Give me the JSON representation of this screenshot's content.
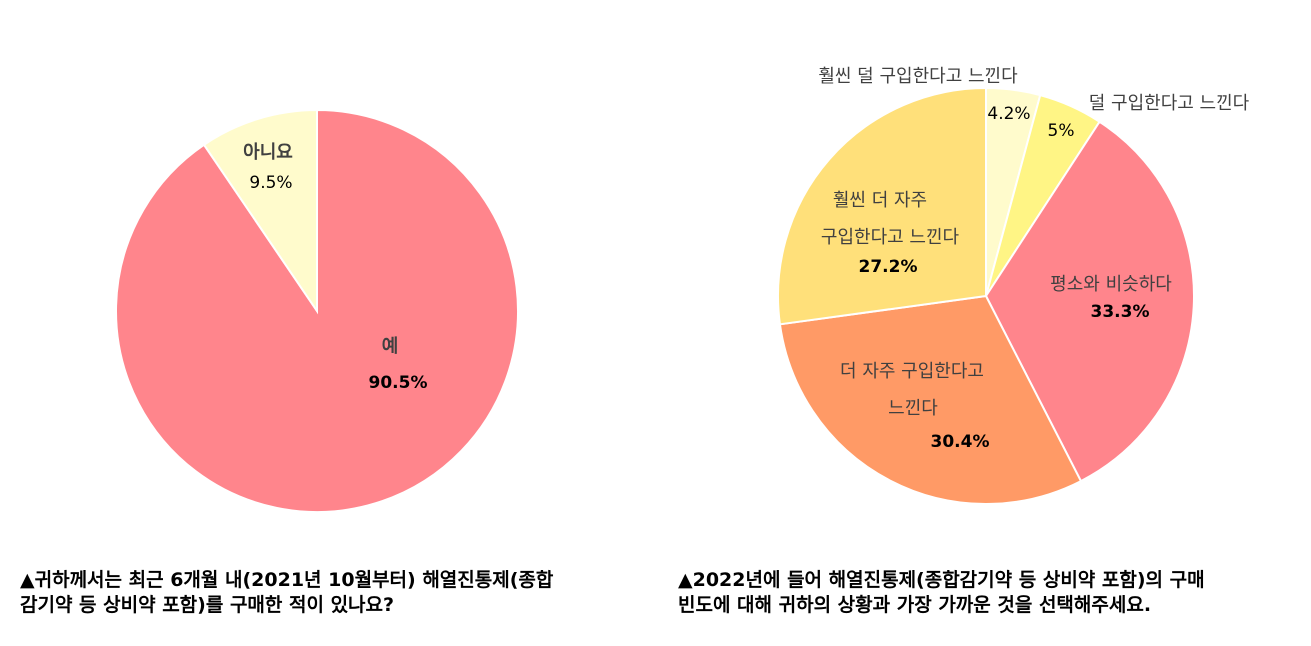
{
  "chart_data": [
    {
      "type": "pie",
      "title": "",
      "question": "▲귀하께서는 최근 6개월 내(2021년 10월부터) 해열진통제(종합\n감기약 등 상비약 포함)를 구매한 적이 있나요?",
      "slices": [
        {
          "label": "예",
          "value": 90.5,
          "value_label": "90.5%",
          "color": "#FF858C"
        },
        {
          "label": "아니요",
          "value": 9.5,
          "value_label": "9.5%",
          "color": "#FFFBCC"
        }
      ]
    },
    {
      "type": "pie",
      "title": "",
      "question": "▲2022년에 들어 해열진통제(종합감기약 등 상비약 포함)의 구매\n빈도에 대해 귀하의 상황과 가장 가까운 것을 선택해주세요.",
      "slices": [
        {
          "label": "훨씬 덜 구입한다고 느낀다",
          "value": 4.2,
          "value_label": "4.2%",
          "color": "#FFFBCC"
        },
        {
          "label": "덜 구입한다고 느낀다",
          "value": 5,
          "value_label": "5%",
          "color": "#FFF585"
        },
        {
          "label": "평소와 비슷하다",
          "value": 33.3,
          "value_label": "33.3%",
          "color": "#FF858C"
        },
        {
          "label": "더 자주 구입한다고 느낀다",
          "value": 30.4,
          "value_label": "30.4%",
          "color": "#FF9A66"
        },
        {
          "label": "훨씬 더 자주 구입한다고 느낀다",
          "value": 27.2,
          "value_label": "27.2%",
          "color": "#FFE07A"
        }
      ]
    }
  ],
  "label_lines": [
    [
      [
        "예"
      ],
      [
        "아니요"
      ]
    ],
    [
      [
        "훨씬 덜 구입한다고 느낀다"
      ],
      [
        "덜 구입한다고 느낀다"
      ],
      [
        "평소와 비슷하다"
      ],
      [
        "더 자주 구입한다고",
        "느낀다"
      ],
      [
        "훨씬 더 자주",
        "구입한다고 느낀다"
      ]
    ]
  ]
}
